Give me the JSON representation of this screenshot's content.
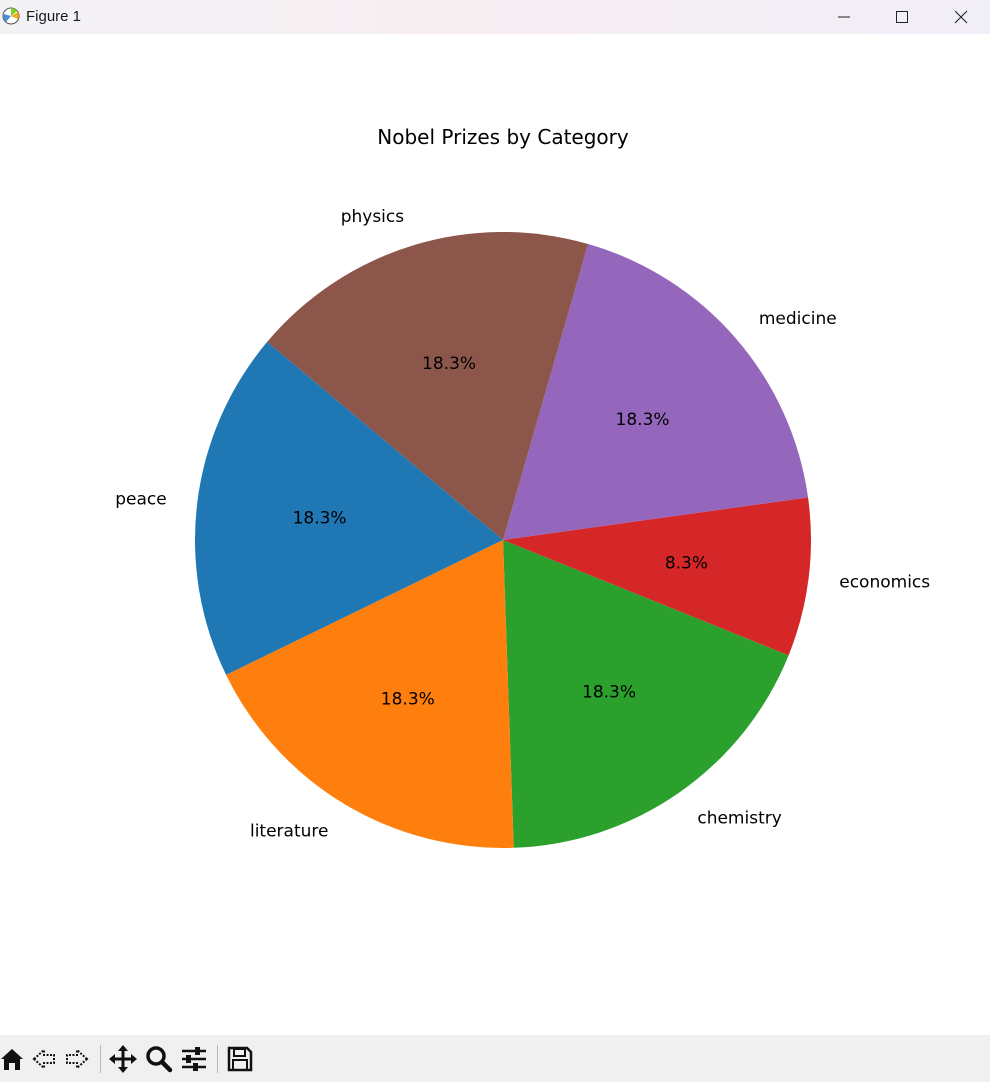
{
  "window": {
    "title": "Figure 1",
    "controls": [
      "minimize",
      "maximize",
      "close"
    ]
  },
  "toolbar": {
    "buttons": [
      "home-icon",
      "back-icon",
      "forward-icon",
      "pan-icon",
      "zoom-icon",
      "configure-subplots-icon",
      "save-icon"
    ]
  },
  "chart_data": {
    "type": "pie",
    "title": "Nobel Prizes by Category",
    "labels": [
      "chemistry",
      "economics",
      "medicine",
      "physics",
      "peace",
      "literature"
    ],
    "values": [
      18.3,
      8.3,
      18.3,
      18.3,
      18.3,
      18.3
    ],
    "autopct": [
      "18.3%",
      "8.3%",
      "18.3%",
      "18.3%",
      "18.3%",
      "18.3%"
    ],
    "colors": [
      "#2ca02c",
      "#d62728",
      "#9467bd",
      "#8c564b",
      "#1f77b4",
      "#ff7f0e"
    ],
    "start_angle_deg": -88,
    "direction": "counterclockwise"
  }
}
